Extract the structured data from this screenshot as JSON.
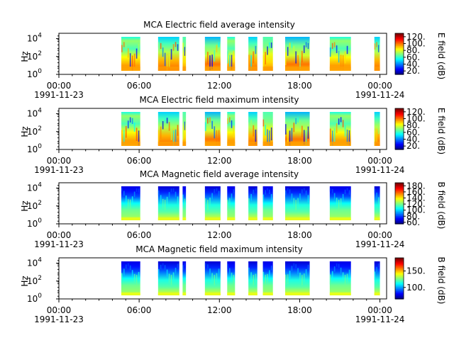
{
  "figure": {
    "x_tick_labels": [
      "00:00",
      "06:00",
      "12:00",
      "18:00",
      "00:00"
    ],
    "x_date_labels": [
      "1991-11-23",
      "",
      "",
      "",
      "1991-11-24"
    ]
  },
  "chart_data": [
    {
      "type": "heatmap",
      "title": "MCA  Electric field average intensity",
      "ylabel": "Hz",
      "y_scale": "log",
      "y_tick_labels": [
        "10^0",
        "10^2",
        "10^4"
      ],
      "x_range": [
        "1991-11-23T00:00",
        "1991-11-24T00:30"
      ],
      "colorbar_label": "E field (dB)",
      "colorbar_ticks": [
        "20.",
        "40.",
        "60.",
        "80.",
        "100.",
        "120."
      ],
      "colorbar_range": [
        10,
        130
      ],
      "colormap": "jet",
      "data_intervals": [
        [
          "04:40",
          "06:05"
        ],
        [
          "07:25",
          "09:00"
        ],
        [
          "09:15",
          "09:30"
        ],
        [
          "10:55",
          "12:05"
        ],
        [
          "12:35",
          "13:10"
        ],
        [
          "14:10",
          "14:50"
        ],
        [
          "15:15",
          "16:00"
        ],
        [
          "16:55",
          "18:45"
        ],
        [
          "20:15",
          "21:50"
        ],
        [
          "23:35",
          "24:00"
        ]
      ]
    },
    {
      "type": "heatmap",
      "title": "MCA  Electric field maximum intensity",
      "ylabel": "Hz",
      "y_scale": "log",
      "y_tick_labels": [
        "10^0",
        "10^2",
        "10^4"
      ],
      "x_range": [
        "1991-11-23T00:00",
        "1991-11-24T00:30"
      ],
      "colorbar_label": "E field (dB)",
      "colorbar_ticks": [
        "20.",
        "40.",
        "60.",
        "80.",
        "100.",
        "120."
      ],
      "colorbar_range": [
        10,
        130
      ],
      "colormap": "jet",
      "data_intervals": [
        [
          "04:40",
          "06:05"
        ],
        [
          "07:25",
          "09:00"
        ],
        [
          "09:15",
          "09:30"
        ],
        [
          "10:55",
          "12:05"
        ],
        [
          "12:35",
          "13:10"
        ],
        [
          "14:10",
          "14:50"
        ],
        [
          "15:15",
          "16:00"
        ],
        [
          "16:55",
          "18:45"
        ],
        [
          "20:15",
          "21:50"
        ],
        [
          "23:35",
          "24:00"
        ]
      ]
    },
    {
      "type": "heatmap",
      "title": "MCA  Magnetic field average intensity",
      "ylabel": "Hz",
      "y_scale": "log",
      "y_tick_labels": [
        "10^0",
        "10^2",
        "10^4"
      ],
      "x_range": [
        "1991-11-23T00:00",
        "1991-11-24T00:30"
      ],
      "colorbar_label": "B field (dB)",
      "colorbar_ticks": [
        "60.",
        "80.",
        "100.",
        "120.",
        "140.",
        "160.",
        "180."
      ],
      "colorbar_range": [
        55,
        190
      ],
      "colormap": "jet",
      "data_intervals": [
        [
          "04:40",
          "06:05"
        ],
        [
          "07:25",
          "09:00"
        ],
        [
          "09:15",
          "09:30"
        ],
        [
          "10:55",
          "12:05"
        ],
        [
          "12:35",
          "13:10"
        ],
        [
          "14:10",
          "14:50"
        ],
        [
          "15:15",
          "16:00"
        ],
        [
          "16:55",
          "18:45"
        ],
        [
          "20:15",
          "21:50"
        ],
        [
          "23:35",
          "24:00"
        ]
      ]
    },
    {
      "type": "heatmap",
      "title": "MCA  Magnetic field maximum intensity",
      "ylabel": "Hz",
      "y_scale": "log",
      "y_tick_labels": [
        "10^0",
        "10^2",
        "10^4"
      ],
      "x_range": [
        "1991-11-23T00:00",
        "1991-11-24T00:30"
      ],
      "colorbar_label": "B field (dB)",
      "colorbar_ticks": [
        "100.",
        "150."
      ],
      "colorbar_range": [
        65,
        190
      ],
      "colormap": "jet",
      "data_intervals": [
        [
          "04:40",
          "06:05"
        ],
        [
          "07:25",
          "09:00"
        ],
        [
          "09:15",
          "09:30"
        ],
        [
          "10:55",
          "12:05"
        ],
        [
          "12:35",
          "13:10"
        ],
        [
          "14:10",
          "14:50"
        ],
        [
          "15:15",
          "16:00"
        ],
        [
          "16:55",
          "18:45"
        ],
        [
          "20:15",
          "21:50"
        ],
        [
          "23:35",
          "24:00"
        ]
      ]
    }
  ]
}
